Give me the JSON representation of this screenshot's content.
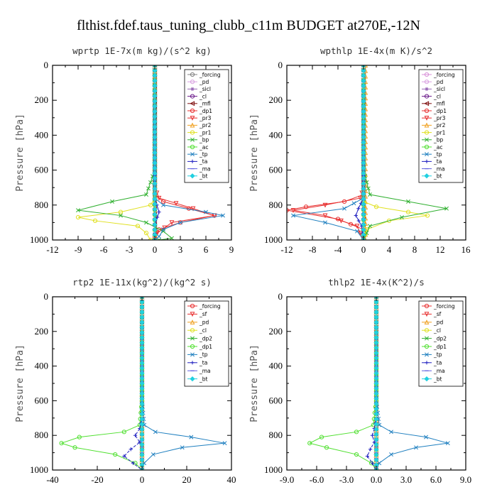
{
  "figure_title": "flthist.fdef.taus_tuning_clubb_c11m  BUDGET at270E,-12N",
  "chart_data": [
    {
      "type": "line",
      "title": "wprtp  1E-7x(m kg)/(s^2 kg)",
      "ylabel": "Pressure [hPa]",
      "xlim": [
        -12,
        9
      ],
      "ylim": [
        1000,
        0
      ],
      "xticks": [
        "-12",
        "-9",
        "-6",
        "-3",
        "0",
        "3",
        "6",
        "9"
      ],
      "yticks": [
        "0",
        "200",
        "400",
        "600",
        "800",
        "1000"
      ],
      "grid": false,
      "legend_position": "top-right",
      "series": [
        {
          "name": "_forcing",
          "color": "#808080",
          "marker": "o",
          "x": [
            0,
            0,
            0
          ],
          "y": [
            0,
            500,
            1000
          ]
        },
        {
          "name": "_pd",
          "color": "#d8a0e0",
          "marker": "o",
          "x": [
            0,
            0,
            0
          ],
          "y": [
            0,
            500,
            1000
          ]
        },
        {
          "name": "_sicl",
          "color": "#9a6ab8",
          "marker": "*",
          "x": [
            0,
            0,
            0
          ],
          "y": [
            0,
            500,
            1000
          ]
        },
        {
          "name": "_cl",
          "color": "#6a1a8a",
          "marker": "o",
          "x": [
            0,
            0,
            0
          ],
          "y": [
            0,
            500,
            1000
          ]
        },
        {
          "name": "_mfl",
          "color": "#801010",
          "marker": "<",
          "x": [
            0,
            0,
            0
          ],
          "y": [
            0,
            500,
            1000
          ]
        },
        {
          "name": "_dp1",
          "color": "#e83030",
          "marker": "o",
          "x": [
            0,
            0,
            0,
            1,
            4,
            7,
            3,
            0.5,
            0,
            0
          ],
          "y": [
            0,
            600,
            740,
            780,
            820,
            860,
            900,
            940,
            980,
            1000
          ]
        },
        {
          "name": "_pr3",
          "color": "#e83030",
          "marker": "v",
          "x": [
            0,
            0,
            0.5,
            4.5,
            7,
            2,
            0.3,
            0
          ],
          "y": [
            0,
            700,
            760,
            820,
            860,
            900,
            960,
            1000
          ]
        },
        {
          "name": "_pr2",
          "color": "#f0a020",
          "marker": "^",
          "x": [
            0,
            0,
            0,
            0,
            0
          ],
          "y": [
            0,
            250,
            500,
            750,
            1000
          ]
        },
        {
          "name": "_pr1",
          "color": "#e0e020",
          "marker": "o",
          "x": [
            0,
            0,
            0,
            -0.5,
            -4,
            -9,
            -7,
            -2,
            -1,
            -0.5
          ],
          "y": [
            0,
            600,
            760,
            800,
            840,
            870,
            890,
            920,
            960,
            1000
          ]
        },
        {
          "name": "_bp",
          "color": "#30b030",
          "marker": "x",
          "x": [
            0,
            0,
            -1,
            -5,
            -9,
            -4,
            -1,
            1,
            2,
            0.5
          ],
          "y": [
            0,
            600,
            740,
            780,
            830,
            860,
            900,
            950,
            990,
            1000
          ]
        },
        {
          "name": "_ac",
          "color": "#50e030",
          "marker": "o",
          "x": [
            0,
            0,
            0,
            0
          ],
          "y": [
            0,
            400,
            800,
            1000
          ]
        },
        {
          "name": "_tp",
          "color": "#2080c0",
          "marker": "x",
          "x": [
            0,
            0,
            0,
            1,
            6,
            8,
            3,
            1,
            0.5,
            0
          ],
          "y": [
            0,
            600,
            760,
            800,
            840,
            860,
            900,
            940,
            980,
            1000
          ]
        },
        {
          "name": "_ta",
          "color": "#2020c0",
          "marker": "+",
          "x": [
            0,
            0,
            0,
            0.5,
            0.3,
            0,
            0
          ],
          "y": [
            0,
            600,
            760,
            840,
            870,
            920,
            1000
          ]
        },
        {
          "name": "_ma",
          "color": "#6060e0",
          "marker": "-",
          "x": [
            0,
            0,
            0,
            0
          ],
          "y": [
            0,
            400,
            800,
            1000
          ]
        },
        {
          "name": "_bt",
          "color": "#20d0e0",
          "marker": "d",
          "x": [
            0,
            0,
            0
          ],
          "y": [
            0,
            500,
            1000
          ]
        }
      ]
    },
    {
      "type": "line",
      "title": "wpthlp  1E-4x(m K)/s^2",
      "ylabel": "Pressure [hPa]",
      "xlim": [
        -12,
        16
      ],
      "ylim": [
        1000,
        0
      ],
      "xticks": [
        "-12",
        "-8",
        "-4",
        "0",
        "4",
        "8",
        "12",
        "16"
      ],
      "yticks": [
        "0",
        "200",
        "400",
        "600",
        "800",
        "1000"
      ],
      "grid": false,
      "legend_position": "top-right",
      "series": [
        {
          "name": "_forcing",
          "color": "#d890d8",
          "marker": "o",
          "x": [
            0,
            0,
            0
          ],
          "y": [
            0,
            500,
            1000
          ]
        },
        {
          "name": "_pd",
          "color": "#d8a0e0",
          "marker": "o",
          "x": [
            0,
            0,
            0
          ],
          "y": [
            0,
            500,
            1000
          ]
        },
        {
          "name": "_sicl",
          "color": "#9a6ab8",
          "marker": "*",
          "x": [
            0,
            0,
            0
          ],
          "y": [
            0,
            500,
            1000
          ]
        },
        {
          "name": "_cl",
          "color": "#6a1a8a",
          "marker": "o",
          "x": [
            0,
            0,
            0
          ],
          "y": [
            0,
            500,
            1000
          ]
        },
        {
          "name": "_mfl",
          "color": "#801010",
          "marker": "<",
          "x": [
            0,
            0,
            0
          ],
          "y": [
            0,
            500,
            1000
          ]
        },
        {
          "name": "_dp1",
          "color": "#e83030",
          "marker": "o",
          "x": [
            0,
            0,
            0,
            -3,
            -9,
            -12,
            -4,
            0,
            0
          ],
          "y": [
            0,
            600,
            740,
            780,
            810,
            830,
            880,
            940,
            1000
          ]
        },
        {
          "name": "_pr3",
          "color": "#e83030",
          "marker": "v",
          "x": [
            0,
            0,
            -0.5,
            -6,
            -11,
            -6,
            -1,
            0
          ],
          "y": [
            0,
            700,
            760,
            800,
            830,
            860,
            920,
            1000
          ]
        },
        {
          "name": "_pr2",
          "color": "#f0a020",
          "marker": "^",
          "x": [
            0.3,
            0.3,
            0.3,
            0.3,
            0.3
          ],
          "y": [
            0,
            250,
            500,
            750,
            1000
          ]
        },
        {
          "name": "_pr1",
          "color": "#e0e020",
          "marker": "o",
          "x": [
            0,
            0,
            0,
            2,
            7,
            10,
            4,
            0.5,
            0
          ],
          "y": [
            0,
            600,
            780,
            810,
            840,
            860,
            890,
            940,
            1000
          ]
        },
        {
          "name": "_bp",
          "color": "#30b030",
          "marker": "x",
          "x": [
            0,
            0,
            1,
            7,
            13,
            6,
            1,
            0
          ],
          "y": [
            0,
            600,
            740,
            780,
            820,
            870,
            920,
            1000
          ]
        },
        {
          "name": "_ac",
          "color": "#50e030",
          "marker": "o",
          "x": [
            0,
            0,
            0,
            0
          ],
          "y": [
            0,
            400,
            800,
            1000
          ]
        },
        {
          "name": "_tp",
          "color": "#2080c0",
          "marker": "x",
          "x": [
            0,
            0,
            0,
            -3,
            -11,
            -6,
            -1,
            0
          ],
          "y": [
            0,
            700,
            760,
            820,
            860,
            900,
            950,
            1000
          ]
        },
        {
          "name": "_ta",
          "color": "#2020c0",
          "marker": "+",
          "x": [
            0,
            0,
            0,
            -0.8,
            -1.2,
            -0.3,
            0
          ],
          "y": [
            0,
            600,
            760,
            820,
            860,
            920,
            1000
          ]
        },
        {
          "name": "_ma",
          "color": "#6060e0",
          "marker": "-",
          "x": [
            0,
            0,
            0,
            0
          ],
          "y": [
            0,
            400,
            800,
            1000
          ]
        },
        {
          "name": "_bt",
          "color": "#20d0e0",
          "marker": "d",
          "x": [
            0,
            0,
            0
          ],
          "y": [
            0,
            500,
            1000
          ]
        }
      ]
    },
    {
      "type": "line",
      "title": "rtp2  1E-11x(kg^2)/(kg^2 s)",
      "ylabel": "Pressure [hPa]",
      "xlim": [
        -40,
        40
      ],
      "ylim": [
        1000,
        0
      ],
      "xticks": [
        "-40",
        "-20",
        "0",
        "20",
        "40"
      ],
      "yticks": [
        "0",
        "200",
        "400",
        "600",
        "800",
        "1000"
      ],
      "grid": false,
      "legend_position": "top-right",
      "series": [
        {
          "name": "_forcing",
          "color": "#e83030",
          "marker": "o",
          "x": [
            0,
            0,
            0
          ],
          "y": [
            0,
            500,
            1000
          ]
        },
        {
          "name": "_sf",
          "color": "#e83030",
          "marker": "v",
          "x": [
            0,
            0,
            0
          ],
          "y": [
            0,
            500,
            1000
          ]
        },
        {
          "name": "_pd",
          "color": "#f0a020",
          "marker": "^",
          "x": [
            0,
            0,
            0
          ],
          "y": [
            0,
            500,
            1000
          ]
        },
        {
          "name": "_cl",
          "color": "#e0e020",
          "marker": "o",
          "x": [
            0,
            0,
            0
          ],
          "y": [
            0,
            500,
            1000
          ]
        },
        {
          "name": "_dp2",
          "color": "#30b030",
          "marker": "x",
          "x": [
            0,
            0,
            0
          ],
          "y": [
            0,
            500,
            1000
          ]
        },
        {
          "name": "_dp1",
          "color": "#50e030",
          "marker": "o",
          "x": [
            0,
            0,
            -1,
            -8,
            -28,
            -36,
            -30,
            -12,
            -3,
            0
          ],
          "y": [
            0,
            600,
            740,
            780,
            810,
            845,
            870,
            910,
            960,
            1000
          ]
        },
        {
          "name": "_tp",
          "color": "#2080c0",
          "marker": "x",
          "x": [
            0,
            0,
            1,
            6,
            22,
            37,
            18,
            5,
            1,
            0
          ],
          "y": [
            0,
            600,
            740,
            780,
            810,
            845,
            870,
            910,
            960,
            1000
          ]
        },
        {
          "name": "_ta",
          "color": "#2020c0",
          "marker": "+",
          "x": [
            0,
            0,
            -1,
            -3,
            -1,
            -5,
            -8,
            -4,
            0
          ],
          "y": [
            0,
            700,
            760,
            800,
            840,
            880,
            920,
            960,
            1000
          ]
        },
        {
          "name": "_ma",
          "color": "#6060e0",
          "marker": "-",
          "x": [
            0,
            0,
            0,
            0
          ],
          "y": [
            0,
            400,
            800,
            1000
          ]
        },
        {
          "name": "_bt",
          "color": "#20d0e0",
          "marker": "d",
          "x": [
            0,
            0,
            0
          ],
          "y": [
            0,
            500,
            1000
          ]
        }
      ]
    },
    {
      "type": "line",
      "title": "thlp2  1E-4x(K^2)/s",
      "ylabel": "Pressure [hPa]",
      "xlim": [
        -9,
        9
      ],
      "ylim": [
        1000,
        0
      ],
      "xticks": [
        "-9.0",
        "-6.0",
        "-3.0",
        "0.0",
        "3.0",
        "6.0",
        "9.0"
      ],
      "yticks": [
        "0",
        "200",
        "400",
        "600",
        "800",
        "1000"
      ],
      "grid": false,
      "legend_position": "top-right",
      "series": [
        {
          "name": "_forcing",
          "color": "#e83030",
          "marker": "o",
          "x": [
            0,
            0,
            0
          ],
          "y": [
            0,
            500,
            1000
          ]
        },
        {
          "name": "_sf",
          "color": "#e83030",
          "marker": "v",
          "x": [
            0,
            0,
            0
          ],
          "y": [
            0,
            500,
            1000
          ]
        },
        {
          "name": "_pd",
          "color": "#f0a020",
          "marker": "^",
          "x": [
            0,
            0,
            0
          ],
          "y": [
            0,
            500,
            1000
          ]
        },
        {
          "name": "_cl",
          "color": "#e0e020",
          "marker": "o",
          "x": [
            0,
            0,
            0
          ],
          "y": [
            0,
            500,
            1000
          ]
        },
        {
          "name": "_dp2",
          "color": "#30b030",
          "marker": "x",
          "x": [
            0,
            0,
            0
          ],
          "y": [
            0,
            500,
            1000
          ]
        },
        {
          "name": "_dp1",
          "color": "#50e030",
          "marker": "o",
          "x": [
            0,
            0,
            -0.3,
            -2,
            -5.5,
            -6.7,
            -5,
            -2,
            -0.5,
            0
          ],
          "y": [
            0,
            600,
            740,
            780,
            810,
            845,
            870,
            910,
            960,
            1000
          ]
        },
        {
          "name": "_tp",
          "color": "#2080c0",
          "marker": "x",
          "x": [
            0,
            0,
            0.3,
            1.5,
            5,
            7.2,
            4,
            1.5,
            0.3,
            0
          ],
          "y": [
            0,
            600,
            740,
            780,
            810,
            845,
            870,
            910,
            960,
            1000
          ]
        },
        {
          "name": "_ta",
          "color": "#2020c0",
          "marker": "+",
          "x": [
            0,
            0,
            -0.2,
            -0.4,
            -0.2,
            -0.6,
            -0.9,
            -0.4,
            0
          ],
          "y": [
            0,
            700,
            760,
            800,
            840,
            880,
            920,
            960,
            1000
          ]
        },
        {
          "name": "_ma",
          "color": "#6060e0",
          "marker": "-",
          "x": [
            0,
            0,
            0,
            0
          ],
          "y": [
            0,
            400,
            800,
            1000
          ]
        },
        {
          "name": "_bt",
          "color": "#20d0e0",
          "marker": "d",
          "x": [
            0,
            0,
            0
          ],
          "y": [
            0,
            500,
            1000
          ]
        }
      ]
    }
  ]
}
